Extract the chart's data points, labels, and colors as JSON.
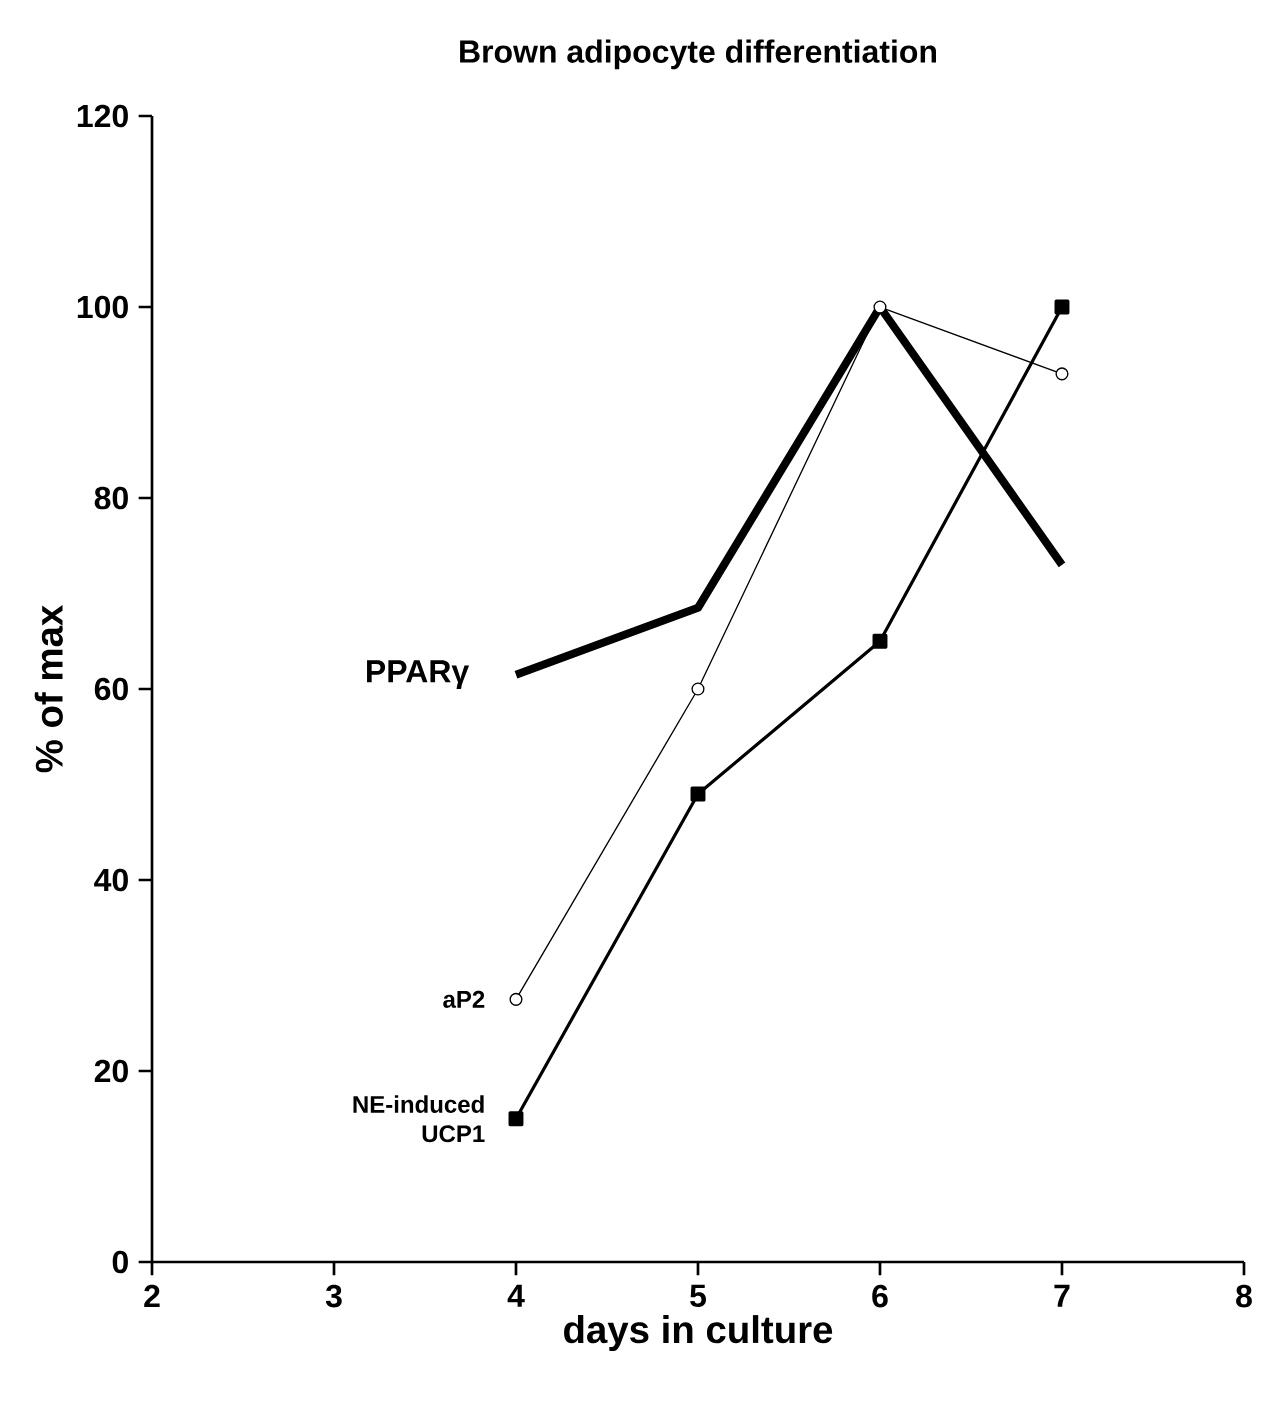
{
  "chart_data": {
    "type": "line",
    "title": "Brown adipocyte differentiation",
    "xlabel": "days in culture",
    "ylabel": "% of max",
    "x": [
      4,
      5,
      6,
      7
    ],
    "xlim": [
      2,
      8
    ],
    "xticks": [
      2,
      3,
      4,
      5,
      6,
      7,
      8
    ],
    "ylim": [
      0,
      120
    ],
    "yticks": [
      0,
      20,
      40,
      60,
      80,
      100,
      120
    ],
    "series": [
      {
        "name": "PPARγ",
        "color": "#000000",
        "marker": "none",
        "values": [
          61.5,
          68.5,
          100,
          73
        ]
      },
      {
        "name": "aP2",
        "color": "#000000",
        "marker": "circle",
        "values": [
          27.5,
          60,
          100,
          93
        ]
      },
      {
        "name": "NE-induced UCP1",
        "color": "#000000",
        "marker": "square",
        "values": [
          15,
          49,
          65,
          100
        ]
      }
    ]
  }
}
